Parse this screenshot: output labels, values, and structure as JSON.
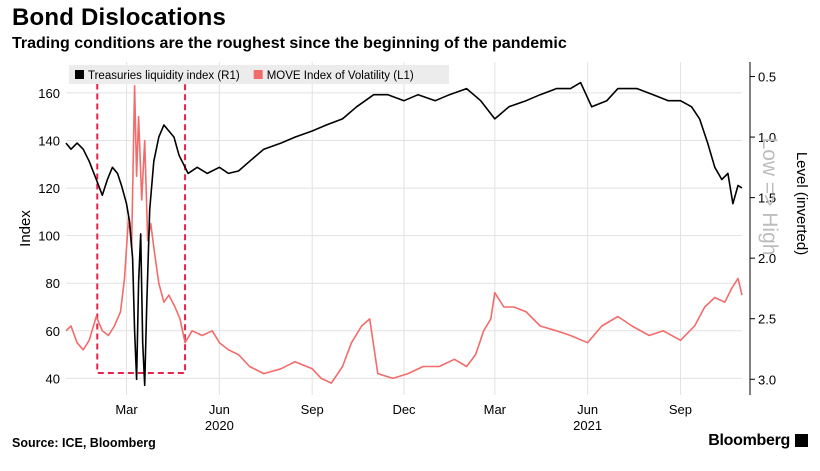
{
  "header": {
    "title": "Bond Dislocations",
    "subtitle": "Trading conditions are the roughest since the beginning of the pandemic"
  },
  "footer": {
    "source": "Source: ICE, Bloomberg",
    "brand": "Bloomberg"
  },
  "colors": {
    "liquidity": "#000000",
    "move": "#f26c6c",
    "highlight_box": "#e8224a",
    "grid": "#e2e2e2",
    "legend_bg": "#ececec"
  },
  "chart_data": {
    "type": "line",
    "title": "Bond Dislocations",
    "left_axis_label": "Index",
    "right_axis_label": "Level (inverted)",
    "right_axis_annotation": "Low => High",
    "left_axis": {
      "range": [
        33,
        173
      ],
      "ticks": [
        40,
        60,
        80,
        100,
        120,
        140,
        160
      ]
    },
    "right_axis": {
      "range": [
        3.13,
        0.38
      ],
      "inverted": true,
      "ticks": [
        "0.5",
        "1.0",
        "1.5",
        "2.0",
        "2.5",
        "3.0"
      ]
    },
    "x_axis": {
      "range": [
        "2020-01-01",
        "2021-11-01"
      ],
      "month_ticks": [
        {
          "date": "2020-03-01",
          "label": "Mar"
        },
        {
          "date": "2020-06-01",
          "label": "Jun"
        },
        {
          "date": "2020-09-01",
          "label": "Sep"
        },
        {
          "date": "2020-12-01",
          "label": "Dec"
        },
        {
          "date": "2021-03-01",
          "label": "Mar"
        },
        {
          "date": "2021-06-01",
          "label": "Jun"
        },
        {
          "date": "2021-09-01",
          "label": "Sep"
        }
      ],
      "year_labels": [
        {
          "date": "2020-06-01",
          "label": "2020"
        },
        {
          "date": "2021-06-01",
          "label": "2021"
        }
      ]
    },
    "legend_placement": "top-left",
    "highlight_period": [
      "2020-02-01",
      "2020-04-28"
    ],
    "series": [
      {
        "name": "Treasuries liquidity index (R1)",
        "axis": "right",
        "points": [
          [
            "2020-01-01",
            1.05
          ],
          [
            "2020-01-06",
            1.1
          ],
          [
            "2020-01-12",
            1.05
          ],
          [
            "2020-01-18",
            1.1
          ],
          [
            "2020-01-24",
            1.2
          ],
          [
            "2020-01-31",
            1.35
          ],
          [
            "2020-02-06",
            1.48
          ],
          [
            "2020-02-11",
            1.35
          ],
          [
            "2020-02-16",
            1.25
          ],
          [
            "2020-02-21",
            1.3
          ],
          [
            "2020-02-25",
            1.4
          ],
          [
            "2020-03-01",
            1.55
          ],
          [
            "2020-03-04",
            1.7
          ],
          [
            "2020-03-07",
            2.0
          ],
          [
            "2020-03-09",
            2.6
          ],
          [
            "2020-03-11",
            3.0
          ],
          [
            "2020-03-13",
            2.2
          ],
          [
            "2020-03-15",
            1.8
          ],
          [
            "2020-03-17",
            2.7
          ],
          [
            "2020-03-19",
            3.05
          ],
          [
            "2020-03-21",
            2.4
          ],
          [
            "2020-03-24",
            1.6
          ],
          [
            "2020-03-28",
            1.2
          ],
          [
            "2020-04-02",
            1.0
          ],
          [
            "2020-04-07",
            0.9
          ],
          [
            "2020-04-12",
            0.95
          ],
          [
            "2020-04-17",
            1.0
          ],
          [
            "2020-04-22",
            1.15
          ],
          [
            "2020-05-01",
            1.3
          ],
          [
            "2020-05-10",
            1.25
          ],
          [
            "2020-05-20",
            1.3
          ],
          [
            "2020-06-01",
            1.25
          ],
          [
            "2020-06-10",
            1.3
          ],
          [
            "2020-06-20",
            1.28
          ],
          [
            "2020-07-01",
            1.2
          ],
          [
            "2020-07-15",
            1.1
          ],
          [
            "2020-08-01",
            1.05
          ],
          [
            "2020-08-15",
            1.0
          ],
          [
            "2020-09-01",
            0.95
          ],
          [
            "2020-09-15",
            0.9
          ],
          [
            "2020-10-01",
            0.85
          ],
          [
            "2020-10-15",
            0.75
          ],
          [
            "2020-11-01",
            0.65
          ],
          [
            "2020-11-15",
            0.65
          ],
          [
            "2020-12-01",
            0.7
          ],
          [
            "2020-12-15",
            0.65
          ],
          [
            "2021-01-01",
            0.7
          ],
          [
            "2021-01-15",
            0.65
          ],
          [
            "2021-02-01",
            0.6
          ],
          [
            "2021-02-15",
            0.7
          ],
          [
            "2021-03-01",
            0.85
          ],
          [
            "2021-03-15",
            0.75
          ],
          [
            "2021-04-01",
            0.7
          ],
          [
            "2021-04-15",
            0.65
          ],
          [
            "2021-05-01",
            0.6
          ],
          [
            "2021-05-15",
            0.6
          ],
          [
            "2021-05-25",
            0.55
          ],
          [
            "2021-06-05",
            0.75
          ],
          [
            "2021-06-20",
            0.7
          ],
          [
            "2021-07-01",
            0.6
          ],
          [
            "2021-07-20",
            0.6
          ],
          [
            "2021-08-05",
            0.65
          ],
          [
            "2021-08-20",
            0.7
          ],
          [
            "2021-09-01",
            0.7
          ],
          [
            "2021-09-12",
            0.75
          ],
          [
            "2021-09-20",
            0.85
          ],
          [
            "2021-09-28",
            1.05
          ],
          [
            "2021-10-05",
            1.25
          ],
          [
            "2021-10-12",
            1.35
          ],
          [
            "2021-10-18",
            1.3
          ],
          [
            "2021-10-23",
            1.55
          ],
          [
            "2021-10-28",
            1.4
          ],
          [
            "2021-11-01",
            1.42
          ]
        ]
      },
      {
        "name": "MOVE Index of Volatility (L1)",
        "axis": "left",
        "points": [
          [
            "2020-01-01",
            60
          ],
          [
            "2020-01-06",
            62
          ],
          [
            "2020-01-12",
            55
          ],
          [
            "2020-01-18",
            52
          ],
          [
            "2020-01-24",
            56
          ],
          [
            "2020-01-31",
            66
          ],
          [
            "2020-02-06",
            60
          ],
          [
            "2020-02-12",
            58
          ],
          [
            "2020-02-18",
            62
          ],
          [
            "2020-02-24",
            68
          ],
          [
            "2020-02-28",
            82
          ],
          [
            "2020-03-03",
            108
          ],
          [
            "2020-03-06",
            95
          ],
          [
            "2020-03-09",
            163
          ],
          [
            "2020-03-11",
            125
          ],
          [
            "2020-03-13",
            150
          ],
          [
            "2020-03-16",
            115
          ],
          [
            "2020-03-19",
            140
          ],
          [
            "2020-03-22",
            98
          ],
          [
            "2020-03-25",
            105
          ],
          [
            "2020-03-28",
            95
          ],
          [
            "2020-04-02",
            80
          ],
          [
            "2020-04-07",
            72
          ],
          [
            "2020-04-12",
            75
          ],
          [
            "2020-04-18",
            70
          ],
          [
            "2020-04-23",
            65
          ],
          [
            "2020-04-28",
            55
          ],
          [
            "2020-05-05",
            60
          ],
          [
            "2020-05-15",
            58
          ],
          [
            "2020-05-25",
            60
          ],
          [
            "2020-06-01",
            55
          ],
          [
            "2020-06-10",
            52
          ],
          [
            "2020-06-20",
            50
          ],
          [
            "2020-07-01",
            45
          ],
          [
            "2020-07-15",
            42
          ],
          [
            "2020-08-01",
            44
          ],
          [
            "2020-08-15",
            47
          ],
          [
            "2020-09-01",
            44
          ],
          [
            "2020-09-10",
            40
          ],
          [
            "2020-09-20",
            38
          ],
          [
            "2020-10-01",
            45
          ],
          [
            "2020-10-10",
            55
          ],
          [
            "2020-10-20",
            62
          ],
          [
            "2020-10-28",
            65
          ],
          [
            "2020-11-05",
            42
          ],
          [
            "2020-11-20",
            40
          ],
          [
            "2020-12-05",
            42
          ],
          [
            "2020-12-20",
            45
          ],
          [
            "2021-01-05",
            45
          ],
          [
            "2021-01-20",
            48
          ],
          [
            "2021-02-01",
            45
          ],
          [
            "2021-02-10",
            50
          ],
          [
            "2021-02-18",
            60
          ],
          [
            "2021-02-25",
            65
          ],
          [
            "2021-03-01",
            76
          ],
          [
            "2021-03-10",
            70
          ],
          [
            "2021-03-20",
            70
          ],
          [
            "2021-04-01",
            68
          ],
          [
            "2021-04-15",
            62
          ],
          [
            "2021-05-01",
            60
          ],
          [
            "2021-05-15",
            58
          ],
          [
            "2021-06-01",
            55
          ],
          [
            "2021-06-15",
            62
          ],
          [
            "2021-07-01",
            66
          ],
          [
            "2021-07-15",
            62
          ],
          [
            "2021-08-01",
            58
          ],
          [
            "2021-08-15",
            60
          ],
          [
            "2021-09-01",
            56
          ],
          [
            "2021-09-15",
            62
          ],
          [
            "2021-09-25",
            70
          ],
          [
            "2021-10-05",
            74
          ],
          [
            "2021-10-15",
            72
          ],
          [
            "2021-10-22",
            78
          ],
          [
            "2021-10-28",
            82
          ],
          [
            "2021-11-01",
            75
          ]
        ]
      }
    ]
  }
}
